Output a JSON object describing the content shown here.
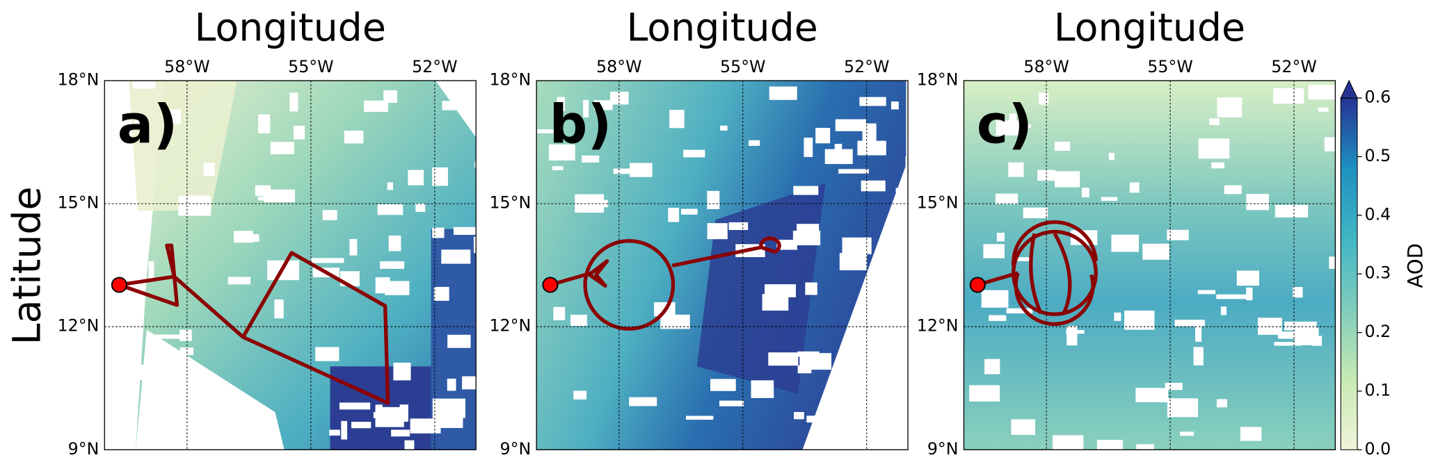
{
  "figure": {
    "y_label": "Latitude",
    "xlim": [
      -60,
      -51
    ],
    "ylim": [
      9,
      18
    ],
    "xticks": [
      {
        "value": -58,
        "label": "58°W"
      },
      {
        "value": -55,
        "label": "55°W"
      },
      {
        "value": -52,
        "label": "52°W"
      }
    ],
    "yticks": [
      {
        "value": 9,
        "label": "9°N"
      },
      {
        "value": 12,
        "label": "12°N"
      },
      {
        "value": 15,
        "label": "15°N"
      },
      {
        "value": 18,
        "label": "18°N"
      }
    ],
    "panels": [
      {
        "label": "a)",
        "x_title": "Longitude"
      },
      {
        "label": "b)",
        "x_title": "Longitude"
      },
      {
        "label": "c)",
        "x_title": "Longitude"
      }
    ],
    "colorbar": {
      "label": "AOD",
      "lim": [
        0,
        0.6
      ],
      "extend": "max",
      "ticks": [
        {
          "value": 0,
          "label": "0.0"
        },
        0.1,
        0.2,
        0.3,
        0.4,
        0.5,
        0.6
      ]
    }
  }
}
